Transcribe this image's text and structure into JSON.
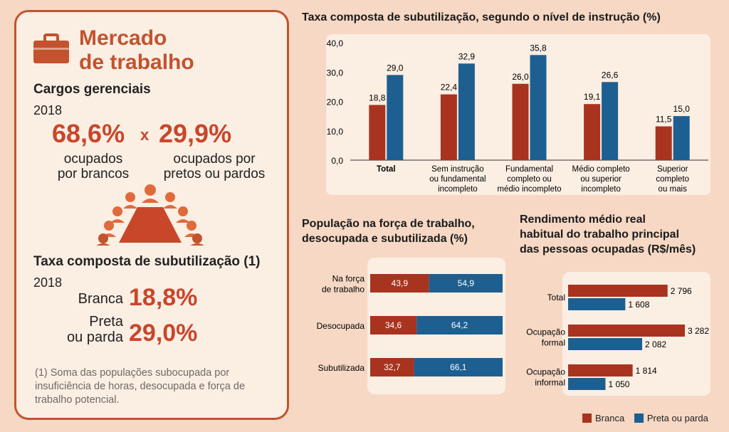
{
  "left": {
    "title_line1": "Mercado",
    "title_line2": "de trabalho",
    "cargos_title": "Cargos gerenciais",
    "cargos_year": "2018",
    "pct_brancos": "68,6%",
    "x_sep": "x",
    "pct_pretos": "29,9%",
    "lbl_brancos_1": "ocupados",
    "lbl_brancos_2": "por brancos",
    "lbl_pretos_1": "ocupados por",
    "lbl_pretos_2": "pretos ou pardos",
    "subut_title": "Taxa composta de subutilização (1)",
    "subut_year": "2018",
    "lbl_branca": "Branca",
    "pct_branca": "18,8%",
    "lbl_preta_1": "Preta",
    "lbl_preta_2": "ou parda",
    "pct_preta": "29,0%",
    "footnote": "(1) Soma das populações subocupada por insuficiência de horas, desocupada e força de trabalho potencial."
  },
  "colors": {
    "branca": "#a8341f",
    "preta": "#1d5f91",
    "accent": "#c2532e"
  },
  "legend": {
    "branca": "Branca",
    "preta": "Preta ou parda"
  },
  "chart_data": [
    {
      "type": "bar",
      "title": "Taxa composta de subutilização, segundo o nível de instrução (%)",
      "categories": [
        [
          "Total"
        ],
        [
          "Sem instrução",
          "ou fundamental",
          "incompleto"
        ],
        [
          "Fundamental",
          "completo ou",
          "médio incompleto"
        ],
        [
          "Médio completo",
          "ou superior",
          "incompleto"
        ],
        [
          "Superior",
          "completo",
          "ou mais"
        ]
      ],
      "series": [
        {
          "name": "Branca",
          "values": [
            18.8,
            22.4,
            26.0,
            19.1,
            11.5
          ],
          "labels": [
            "18,8",
            "22,4",
            "26,0",
            "19,1",
            "11,5"
          ]
        },
        {
          "name": "Preta ou parda",
          "values": [
            29.0,
            32.9,
            35.8,
            26.6,
            15.0
          ],
          "labels": [
            "29,0",
            "32,9",
            "35,8",
            "26,6",
            "15,0"
          ]
        }
      ],
      "ylim": [
        0,
        40
      ],
      "yticks": [
        "0,0",
        "10,0",
        "20,0",
        "30,0",
        "40,0"
      ],
      "grid": false
    },
    {
      "type": "bar",
      "orientation": "horizontal-stacked",
      "title_lines": [
        "População na força de trabalho,",
        "desocupada e subutilizada (%)"
      ],
      "categories": [
        [
          "Na força",
          "de trabalho"
        ],
        [
          "Desocupada"
        ],
        [
          "Subutilizada"
        ]
      ],
      "series": [
        {
          "name": "Branca",
          "values": [
            43.9,
            34.6,
            32.7
          ],
          "labels": [
            "43,9",
            "34,6",
            "32,7"
          ]
        },
        {
          "name": "Preta ou parda",
          "values": [
            54.9,
            64.2,
            66.1
          ],
          "labels": [
            "54,9",
            "64,2",
            "66,1"
          ]
        }
      ],
      "xlim": [
        0,
        100
      ]
    },
    {
      "type": "bar",
      "orientation": "horizontal",
      "title_lines": [
        "Rendimento médio real",
        "habitual do trabalho principal",
        "das pessoas ocupadas (R$/mês)"
      ],
      "categories": [
        [
          "Total"
        ],
        [
          "Ocupação",
          "formal"
        ],
        [
          "Ocupação",
          "informal"
        ]
      ],
      "series": [
        {
          "name": "Branca",
          "values": [
            2796,
            3282,
            1814
          ],
          "labels": [
            "2 796",
            "3 282",
            "1 814"
          ]
        },
        {
          "name": "Preta ou parda",
          "values": [
            1608,
            2082,
            1050
          ],
          "labels": [
            "1 608",
            "2 082",
            "1 050"
          ]
        }
      ],
      "xlim": [
        0,
        3282
      ],
      "legend": "bottom-right"
    }
  ]
}
